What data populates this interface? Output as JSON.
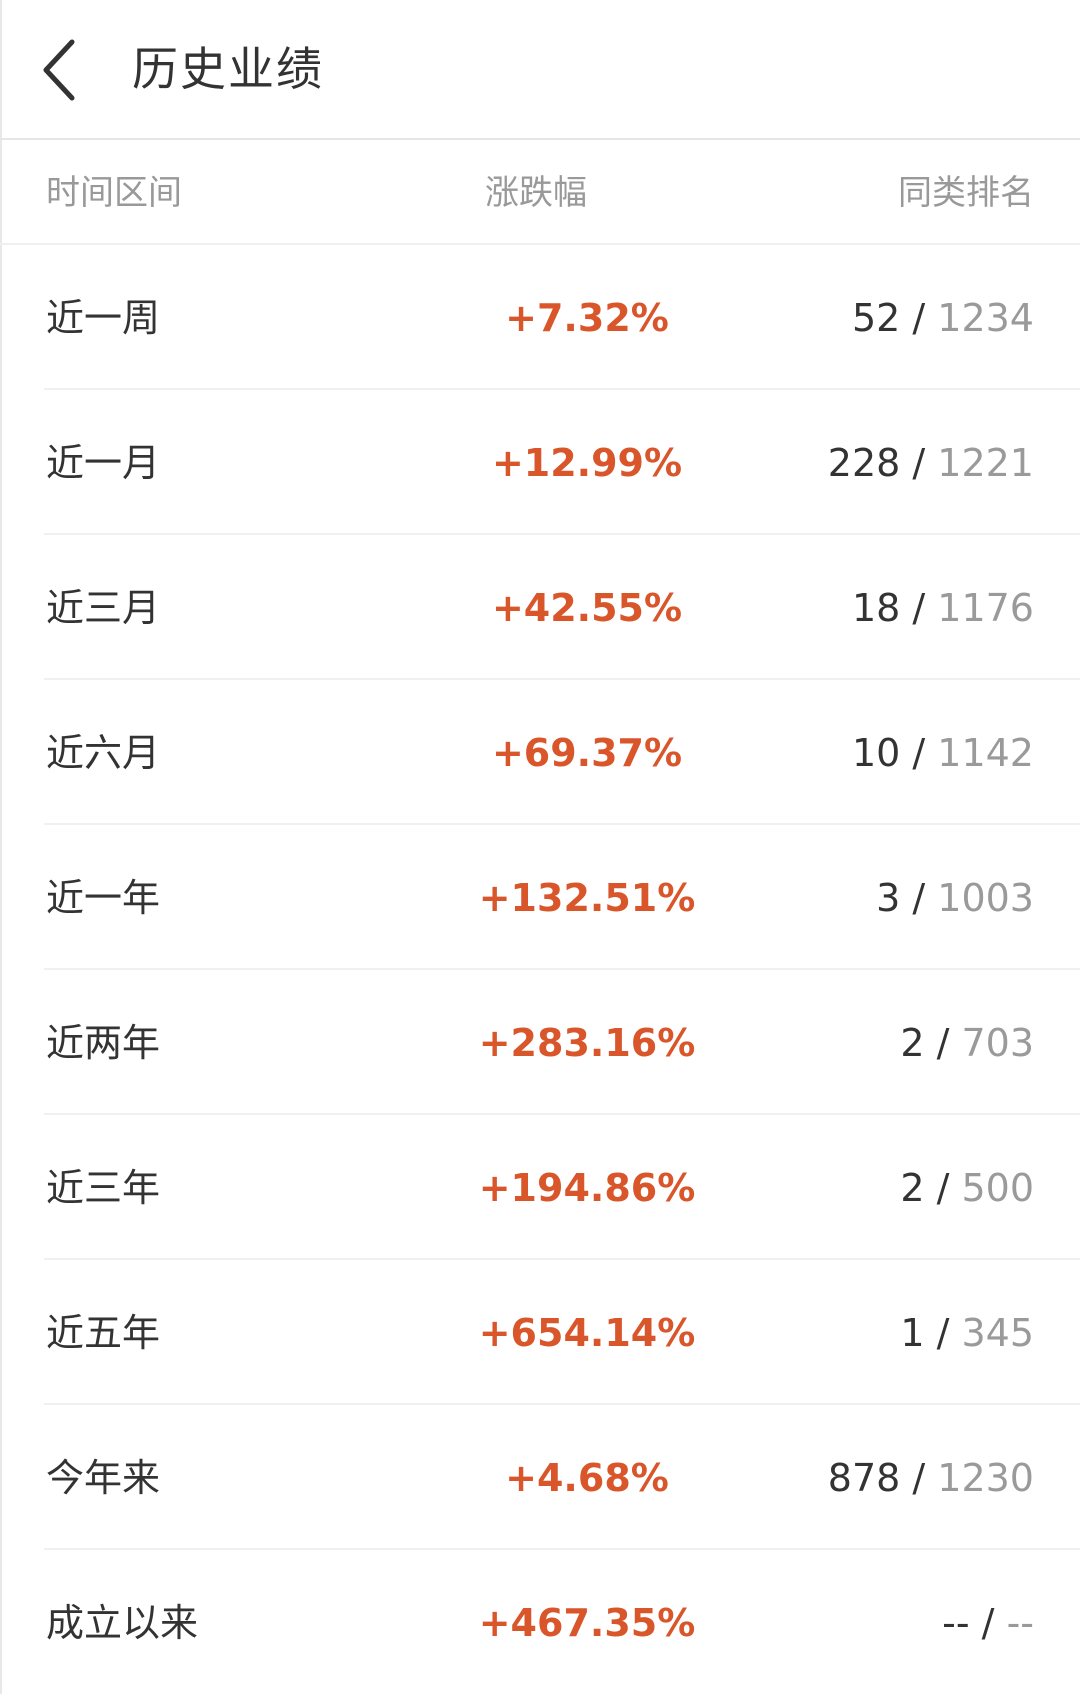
{
  "header": {
    "back_icon": "chevron-left-icon",
    "title": "历史业绩"
  },
  "columns": {
    "period": "时间区间",
    "change": "涨跌幅",
    "rank": "同类排名"
  },
  "colors": {
    "change_positive": "#d9562b",
    "rank_total": "#9a9a9a",
    "text_primary": "#333333",
    "text_secondary": "#999999"
  },
  "rows": [
    {
      "period": "近一周",
      "change": "+7.32%",
      "rank": "52",
      "sep": " / ",
      "total": "1234"
    },
    {
      "period": "近一月",
      "change": "+12.99%",
      "rank": "228",
      "sep": " / ",
      "total": "1221"
    },
    {
      "period": "近三月",
      "change": "+42.55%",
      "rank": "18",
      "sep": " / ",
      "total": "1176"
    },
    {
      "period": "近六月",
      "change": "+69.37%",
      "rank": "10",
      "sep": " / ",
      "total": "1142"
    },
    {
      "period": "近一年",
      "change": "+132.51%",
      "rank": "3",
      "sep": " / ",
      "total": "1003"
    },
    {
      "period": "近两年",
      "change": "+283.16%",
      "rank": "2",
      "sep": " / ",
      "total": "703"
    },
    {
      "period": "近三年",
      "change": "+194.86%",
      "rank": "2",
      "sep": " / ",
      "total": "500"
    },
    {
      "period": "近五年",
      "change": "+654.14%",
      "rank": "1",
      "sep": " / ",
      "total": "345"
    },
    {
      "period": "今年来",
      "change": "+4.68%",
      "rank": "878",
      "sep": " / ",
      "total": "1230"
    },
    {
      "period": "成立以来",
      "change": "+467.35%",
      "rank": "--",
      "sep": " / ",
      "total": "--"
    }
  ]
}
